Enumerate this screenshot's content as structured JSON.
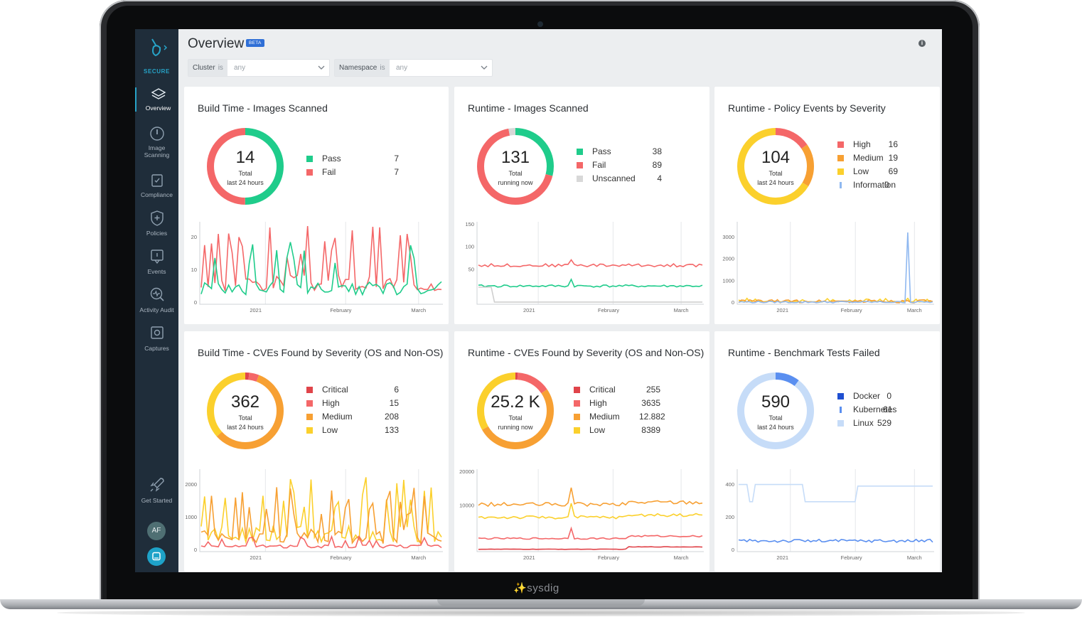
{
  "app": {
    "brand": "SECURE",
    "bottom_logo": "sysdig"
  },
  "sidebar": {
    "items": [
      {
        "label": "Overview",
        "active": true,
        "icon": "layers-icon"
      },
      {
        "label": "Image",
        "label2": "Scanning",
        "icon": "scan-icon"
      },
      {
        "label": "Compliance",
        "icon": "compliance-icon"
      },
      {
        "label": "Policies",
        "icon": "shield-icon"
      },
      {
        "label": "Events",
        "icon": "events-icon"
      },
      {
        "label": "Activity Audit",
        "icon": "activity-audit-icon"
      },
      {
        "label": "Captures",
        "icon": "captures-icon"
      }
    ],
    "get_started": "Get Started",
    "avatar": "AF"
  },
  "header": {
    "title": "Overview",
    "badge": "BETA"
  },
  "filters": [
    {
      "key": "Cluster",
      "op": "is",
      "value": "any"
    },
    {
      "key": "Namespace",
      "op": "is",
      "value": "any"
    }
  ],
  "panels": [
    {
      "title": "Build Time - Images Scanned",
      "total": "14",
      "sub1": "Total",
      "sub2": "last 24 hours",
      "legend": [
        {
          "label": "Pass",
          "value": "7",
          "color": "#1fcc8b"
        },
        {
          "label": "Fail",
          "value": "7",
          "color": "#f46768"
        }
      ],
      "ring": [
        {
          "value": 7,
          "color": "#1fcc8b"
        },
        {
          "value": 7,
          "color": "#f46768"
        }
      ],
      "y_ticks": [
        "20",
        "10",
        "0"
      ],
      "x_ticks": [
        "2021",
        "February",
        "March"
      ]
    },
    {
      "title": "Runtime - Images Scanned",
      "total": "131",
      "sub1": "Total",
      "sub2": "running now",
      "legend": [
        {
          "label": "Pass",
          "value": "38",
          "color": "#1fcc8b"
        },
        {
          "label": "Fail",
          "value": "89",
          "color": "#f46768"
        },
        {
          "label": "Unscanned",
          "value": "4",
          "color": "#d8d8d8"
        }
      ],
      "ring": [
        {
          "value": 38,
          "color": "#1fcc8b"
        },
        {
          "value": 89,
          "color": "#f46768"
        },
        {
          "value": 4,
          "color": "#d8d8d8"
        }
      ],
      "y_ticks": [
        "150",
        "100",
        "50"
      ],
      "x_ticks": [
        "2021",
        "February",
        "March"
      ]
    },
    {
      "title": "Runtime - Policy Events by Severity",
      "total": "104",
      "sub1": "Total",
      "sub2": "last 24 hours",
      "legend": [
        {
          "label": "High",
          "value": "16",
          "color": "#f46768"
        },
        {
          "label": "Medium",
          "value": "19",
          "color": "#f7a033"
        },
        {
          "label": "Low",
          "value": "69",
          "color": "#fbd02c"
        },
        {
          "label": "Information",
          "value": "0",
          "color": "#8fb8f0",
          "bar": true
        }
      ],
      "ring": [
        {
          "value": 16,
          "color": "#f46768"
        },
        {
          "value": 19,
          "color": "#f7a033"
        },
        {
          "value": 69,
          "color": "#fbd02c"
        }
      ],
      "y_ticks": [
        "3000",
        "2000",
        "1000",
        "0"
      ],
      "x_ticks": [
        "2021",
        "February",
        "March"
      ]
    },
    {
      "title": "Build Time - CVEs Found by Severity (OS and Non-OS)",
      "total": "362",
      "sub1": "Total",
      "sub2": "last 24 hours",
      "legend": [
        {
          "label": "Critical",
          "value": "6",
          "color": "#e0444a"
        },
        {
          "label": "High",
          "value": "15",
          "color": "#f46768"
        },
        {
          "label": "Medium",
          "value": "208",
          "color": "#f7a033"
        },
        {
          "label": "Low",
          "value": "133",
          "color": "#fbd02c"
        }
      ],
      "ring": [
        {
          "value": 6,
          "color": "#e0444a"
        },
        {
          "value": 15,
          "color": "#f46768"
        },
        {
          "value": 208,
          "color": "#f7a033"
        },
        {
          "value": 133,
          "color": "#fbd02c"
        }
      ],
      "y_ticks": [
        "2000",
        "1000",
        "0"
      ],
      "x_ticks": [
        "2021",
        "February",
        "March"
      ]
    },
    {
      "title": "Runtime - CVEs Found by Severity (OS and Non-OS)",
      "total": "25.2 K",
      "sub1": "Total",
      "sub2": "running now",
      "legend": [
        {
          "label": "Critical",
          "value": "255",
          "color": "#e0444a"
        },
        {
          "label": "High",
          "value": "3635",
          "color": "#f46768"
        },
        {
          "label": "Medium",
          "value": "12.882",
          "color": "#f7a033"
        },
        {
          "label": "Low",
          "value": "8389",
          "color": "#fbd02c"
        }
      ],
      "ring": [
        {
          "value": 255,
          "color": "#e0444a"
        },
        {
          "value": 3635,
          "color": "#f46768"
        },
        {
          "value": 12882,
          "color": "#f7a033"
        },
        {
          "value": 8389,
          "color": "#fbd02c"
        }
      ],
      "y_ticks": [
        "20000",
        "10000"
      ],
      "x_ticks": [
        "2021",
        "February",
        "March"
      ]
    },
    {
      "title": "Runtime - Benchmark Tests Failed",
      "total": "590",
      "sub1": "Total",
      "sub2": "last 24 hours",
      "legend": [
        {
          "label": "Docker",
          "value": "0",
          "color": "#1f4fd1"
        },
        {
          "label": "Kubernetes",
          "value": "61",
          "color": "#5a8ff0",
          "bar": true
        },
        {
          "label": "Linux",
          "value": "529",
          "color": "#c6dcf8"
        }
      ],
      "ring": [
        {
          "value": 61,
          "color": "#5a8ff0"
        },
        {
          "value": 529,
          "color": "#c6dcf8"
        }
      ],
      "y_ticks": [
        "400",
        "200",
        "0"
      ],
      "x_ticks": [
        "2021",
        "February",
        "March"
      ]
    }
  ]
}
